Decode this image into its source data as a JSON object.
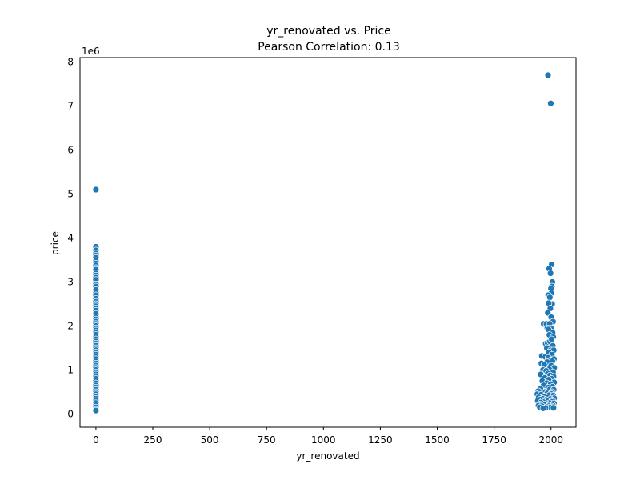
{
  "chart_data": {
    "type": "scatter",
    "title": "yr_renovated vs. Price",
    "subtitle": "Pearson Correlation: 0.13",
    "xlabel": "yr_renovated",
    "ylabel": "price",
    "y_offset_label": "1e6",
    "xlim": [
      -70,
      2110
    ],
    "ylim": [
      -0.3,
      8.1
    ],
    "y_scale_factor": 1000000,
    "x_ticks": [
      0,
      250,
      500,
      750,
      1000,
      1250,
      1500,
      1750,
      2000
    ],
    "x_tick_labels": [
      "0",
      "250",
      "500",
      "750",
      "1000",
      "1250",
      "1500",
      "1750",
      "2000"
    ],
    "y_ticks": [
      0,
      1,
      2,
      3,
      4,
      5,
      6,
      7,
      8
    ],
    "y_tick_labels": [
      "0",
      "1",
      "2",
      "3",
      "4",
      "5",
      "6",
      "7",
      "8"
    ],
    "grid": false,
    "legend": "none",
    "marker_color": "#1f77b4",
    "series": [
      {
        "points": [
          [
            0,
            5.1
          ],
          [
            0,
            3.8
          ],
          [
            0,
            3.72
          ],
          [
            0,
            3.65
          ],
          [
            0,
            3.6
          ],
          [
            0,
            3.55
          ],
          [
            0,
            3.48
          ],
          [
            0,
            3.42
          ],
          [
            0,
            3.38
          ],
          [
            0,
            3.32
          ],
          [
            0,
            3.28
          ],
          [
            0,
            3.2
          ],
          [
            0,
            3.15
          ],
          [
            0,
            3.1
          ],
          [
            0,
            3.05
          ],
          [
            0,
            2.95
          ],
          [
            0,
            2.9
          ],
          [
            0,
            2.82
          ],
          [
            0,
            2.75
          ],
          [
            0,
            2.7
          ],
          [
            0,
            2.62
          ],
          [
            0,
            2.55
          ],
          [
            0,
            2.5
          ],
          [
            0,
            2.45
          ],
          [
            0,
            2.4
          ],
          [
            0,
            2.35
          ],
          [
            0,
            2.28
          ],
          [
            0,
            2.2
          ],
          [
            0,
            2.15
          ],
          [
            0,
            2.1
          ],
          [
            0,
            2.05
          ],
          [
            0,
            2.0
          ],
          [
            0,
            1.95
          ],
          [
            0,
            1.9
          ],
          [
            0,
            1.85
          ],
          [
            0,
            1.8
          ],
          [
            0,
            1.75
          ],
          [
            0,
            1.7
          ],
          [
            0,
            1.65
          ],
          [
            0,
            1.6
          ],
          [
            0,
            1.55
          ],
          [
            0,
            1.5
          ],
          [
            0,
            1.45
          ],
          [
            0,
            1.4
          ],
          [
            0,
            1.35
          ],
          [
            0,
            1.3
          ],
          [
            0,
            1.25
          ],
          [
            0,
            1.2
          ],
          [
            0,
            1.15
          ],
          [
            0,
            1.1
          ],
          [
            0,
            1.05
          ],
          [
            0,
            1.0
          ],
          [
            0,
            0.95
          ],
          [
            0,
            0.9
          ],
          [
            0,
            0.85
          ],
          [
            0,
            0.8
          ],
          [
            0,
            0.75
          ],
          [
            0,
            0.7
          ],
          [
            0,
            0.65
          ],
          [
            0,
            0.6
          ],
          [
            0,
            0.55
          ],
          [
            0,
            0.5
          ],
          [
            0,
            0.45
          ],
          [
            0,
            0.4
          ],
          [
            0,
            0.35
          ],
          [
            0,
            0.3
          ],
          [
            0,
            0.25
          ],
          [
            0,
            0.2
          ],
          [
            0,
            0.15
          ],
          [
            0,
            0.1
          ],
          [
            0,
            0.08
          ],
          [
            1987,
            7.7
          ],
          [
            1999,
            7.06
          ],
          [
            2003,
            3.4
          ],
          [
            1992,
            3.3
          ],
          [
            1998,
            3.2
          ],
          [
            2006,
            3.0
          ],
          [
            2004,
            2.9
          ],
          [
            2000,
            2.85
          ],
          [
            2002,
            2.75
          ],
          [
            1988,
            2.7
          ],
          [
            1995,
            2.65
          ],
          [
            2005,
            2.5
          ],
          [
            1990,
            2.52
          ],
          [
            1997,
            2.4
          ],
          [
            1986,
            2.3
          ],
          [
            2001,
            2.2
          ],
          [
            2009,
            2.1
          ],
          [
            1968,
            2.05
          ],
          [
            1980,
            2.05
          ],
          [
            1994,
            2.05
          ],
          [
            1984,
            1.95
          ],
          [
            2000,
            1.95
          ],
          [
            1989,
            1.92
          ],
          [
            2007,
            1.85
          ],
          [
            1993,
            1.8
          ],
          [
            2010,
            1.75
          ],
          [
            1977,
            1.6
          ],
          [
            1985,
            1.62
          ],
          [
            1996,
            1.65
          ],
          [
            2003,
            1.7
          ],
          [
            2008,
            1.55
          ],
          [
            1982,
            1.5
          ],
          [
            1999,
            1.45
          ],
          [
            2012,
            1.45
          ],
          [
            1991,
            1.4
          ],
          [
            2004,
            1.35
          ],
          [
            1960,
            1.32
          ],
          [
            1975,
            1.3
          ],
          [
            1988,
            1.28
          ],
          [
            2013,
            1.25
          ],
          [
            1998,
            1.22
          ],
          [
            2006,
            1.2
          ],
          [
            1983,
            1.18
          ],
          [
            1958,
            1.15
          ],
          [
            1970,
            1.12
          ],
          [
            2001,
            1.1
          ],
          [
            2014,
            1.05
          ],
          [
            1992,
            1.02
          ],
          [
            1965,
            1.0
          ],
          [
            1979,
            0.98
          ],
          [
            2009,
            0.95
          ],
          [
            1986,
            0.92
          ],
          [
            1955,
            0.9
          ],
          [
            1996,
            0.88
          ],
          [
            2011,
            0.85
          ],
          [
            1973,
            0.82
          ],
          [
            2003,
            0.8
          ],
          [
            1990,
            0.78
          ],
          [
            1962,
            0.75
          ],
          [
            2014,
            0.72
          ],
          [
            1981,
            0.7
          ],
          [
            1999,
            0.68
          ],
          [
            1968,
            0.65
          ],
          [
            2007,
            0.62
          ],
          [
            1987,
            0.6
          ],
          [
            1953,
            0.58
          ],
          [
            1995,
            0.56
          ],
          [
            2012,
            0.55
          ],
          [
            1944,
            0.52
          ],
          [
            1975,
            0.5
          ],
          [
            2005,
            0.5
          ],
          [
            1948,
            0.48
          ],
          [
            1984,
            0.47
          ],
          [
            2000,
            0.46
          ],
          [
            1940,
            0.45
          ],
          [
            1957,
            0.44
          ],
          [
            1993,
            0.43
          ],
          [
            2010,
            0.42
          ],
          [
            1970,
            0.4
          ],
          [
            1946,
            0.38
          ],
          [
            1989,
            0.38
          ],
          [
            2014,
            0.36
          ],
          [
            1963,
            0.35
          ],
          [
            1997,
            0.34
          ],
          [
            1952,
            0.33
          ],
          [
            1978,
            0.32
          ],
          [
            2006,
            0.31
          ],
          [
            1942,
            0.3
          ],
          [
            1985,
            0.29
          ],
          [
            2002,
            0.28
          ],
          [
            1967,
            0.27
          ],
          [
            1955,
            0.26
          ],
          [
            1994,
            0.25
          ],
          [
            2013,
            0.24
          ],
          [
            1980,
            0.23
          ],
          [
            1950,
            0.22
          ],
          [
            1972,
            0.21
          ],
          [
            2008,
            0.2
          ],
          [
            1945,
            0.19
          ],
          [
            1991,
            0.19
          ],
          [
            1960,
            0.18
          ],
          [
            2004,
            0.17
          ],
          [
            1983,
            0.16
          ],
          [
            1998,
            0.15
          ],
          [
            1951,
            0.15
          ],
          [
            2011,
            0.14
          ],
          [
            1976,
            0.14
          ],
          [
            1966,
            0.13
          ]
        ]
      }
    ]
  }
}
